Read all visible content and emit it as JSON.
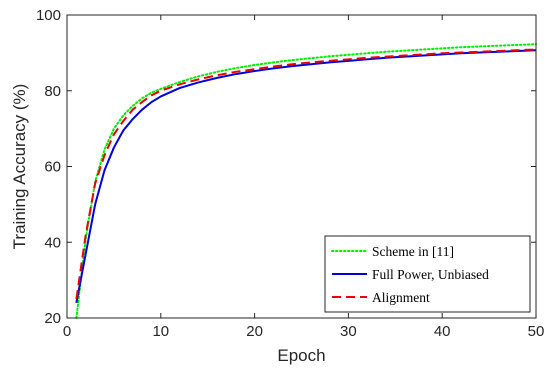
{
  "chart_data": {
    "type": "line",
    "xlabel": "Epoch",
    "ylabel": "Training Accuracy (%)",
    "xlim": [
      0,
      50
    ],
    "ylim": [
      20,
      100
    ],
    "xticks": [
      0,
      10,
      20,
      30,
      40,
      50
    ],
    "yticks": [
      20,
      40,
      60,
      80,
      100
    ],
    "grid": false,
    "legend_position": "bottom-right",
    "series": [
      {
        "name": "Scheme in [11]",
        "style": "dotted",
        "color": "#00ee00",
        "x": [
          1,
          2,
          3,
          4,
          5,
          6,
          7,
          8,
          9,
          10,
          12,
          14,
          16,
          18,
          20,
          22,
          24,
          26,
          28,
          30,
          32,
          34,
          36,
          38,
          40,
          42,
          44,
          46,
          48,
          50
        ],
        "y": [
          20,
          41,
          56,
          64.5,
          70,
          73.5,
          76,
          78,
          79.5,
          80.5,
          82.3,
          83.8,
          85.0,
          86.0,
          86.8,
          87.5,
          88.1,
          88.6,
          89.1,
          89.5,
          89.9,
          90.3,
          90.6,
          90.9,
          91.2,
          91.5,
          91.7,
          91.9,
          92.1,
          92.3
        ]
      },
      {
        "name": "Full Power, Unbiased",
        "style": "solid",
        "color": "#0000dd",
        "x": [
          1,
          2,
          3,
          4,
          5,
          6,
          7,
          8,
          9,
          10,
          12,
          14,
          16,
          18,
          20,
          22,
          24,
          26,
          28,
          30,
          32,
          34,
          36,
          38,
          40,
          42,
          44,
          46,
          48,
          50
        ],
        "y": [
          24,
          37,
          50,
          59,
          65,
          69.5,
          72.5,
          75,
          77,
          78.5,
          80.7,
          82.2,
          83.4,
          84.4,
          85.2,
          85.9,
          86.5,
          87.0,
          87.5,
          87.9,
          88.3,
          88.7,
          89.0,
          89.3,
          89.6,
          89.9,
          90.1,
          90.3,
          90.5,
          90.7
        ]
      },
      {
        "name": "Alignment",
        "style": "dashed",
        "color": "#ee0000",
        "x": [
          1,
          2,
          3,
          4,
          5,
          6,
          7,
          8,
          9,
          10,
          12,
          14,
          16,
          18,
          20,
          22,
          24,
          26,
          28,
          30,
          32,
          34,
          36,
          38,
          40,
          42,
          44,
          46,
          48,
          50
        ],
        "y": [
          25,
          42,
          55.5,
          63,
          68.5,
          72,
          75,
          77,
          78.8,
          80,
          81.7,
          83.0,
          84.1,
          85.0,
          85.7,
          86.4,
          87.0,
          87.5,
          87.9,
          88.3,
          88.7,
          89.0,
          89.3,
          89.6,
          89.9,
          90.1,
          90.3,
          90.5,
          90.7,
          90.9
        ]
      }
    ]
  }
}
